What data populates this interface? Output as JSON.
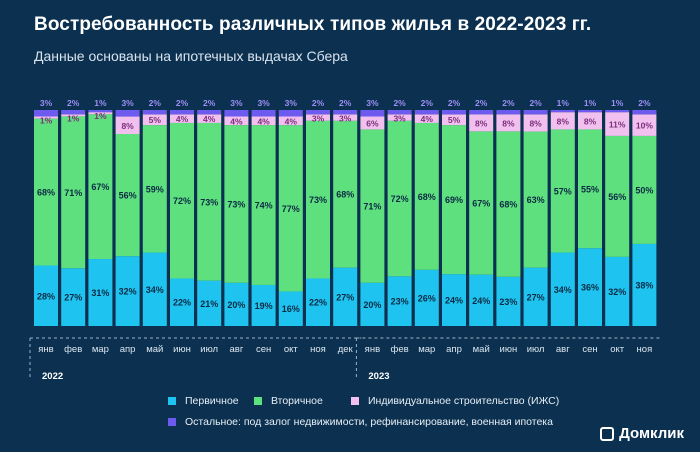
{
  "title": "Востребованность различных типов жилья в 2022-2023 гг.",
  "subtitle": "Данные основаны на ипотечных выдачах Сбера",
  "brand": "Домклик",
  "colors": {
    "background": "#0c3150",
    "primary": "#1ec3ef",
    "secondary": "#5ee07e",
    "izhs": "#f1c0ef",
    "other": "#6d5bf0"
  },
  "legend": [
    {
      "label": "Первичное",
      "color": "#1ec3ef"
    },
    {
      "label": "Вторичное",
      "color": "#5ee07e"
    },
    {
      "label": "Индивидуальное строительство (ИЖС)",
      "color": "#f1c0ef"
    },
    {
      "label": "Остальное: под залог недвижимости, рефинансирование, военная ипотека",
      "color": "#6d5bf0"
    }
  ],
  "chart_data": {
    "type": "bar",
    "stacked": true,
    "years": [
      {
        "label": "2022",
        "start": 0,
        "end": 11
      },
      {
        "label": "2023",
        "start": 12,
        "end": 22
      }
    ],
    "categories": [
      "янв",
      "фев",
      "мар",
      "апр",
      "май",
      "июн",
      "июл",
      "авг",
      "сен",
      "окт",
      "ноя",
      "дек",
      "янв",
      "фев",
      "мар",
      "апр",
      "май",
      "июн",
      "июл",
      "авг",
      "сен",
      "окт",
      "ноя"
    ],
    "series": [
      {
        "name": "Первичное",
        "values": [
          28,
          27,
          31,
          32,
          34,
          22,
          21,
          20,
          19,
          16,
          22,
          27,
          20,
          23,
          26,
          24,
          24,
          23,
          27,
          34,
          36,
          32,
          38
        ]
      },
      {
        "name": "Вторичное",
        "values": [
          68,
          71,
          67,
          56,
          59,
          72,
          73,
          73,
          74,
          77,
          73,
          68,
          71,
          72,
          68,
          69,
          67,
          68,
          63,
          57,
          55,
          56,
          50
        ]
      },
      {
        "name": "Индивидуальное строительство (ИЖС)",
        "values": [
          1,
          1,
          1,
          8,
          5,
          4,
          4,
          4,
          4,
          4,
          3,
          3,
          6,
          3,
          4,
          5,
          8,
          8,
          8,
          8,
          8,
          11,
          10
        ]
      },
      {
        "name": "Остальное: под залог недвижимости, рефинансирование, военная ипотека",
        "values": [
          3,
          2,
          1,
          3,
          2,
          2,
          2,
          3,
          3,
          3,
          2,
          2,
          3,
          2,
          2,
          2,
          2,
          2,
          2,
          1,
          1,
          1,
          2
        ]
      }
    ],
    "value_labels": [
      [
        "28%",
        "27%",
        "31%",
        "32%",
        "34%",
        "22%",
        "21%",
        "20%",
        "19%",
        "16%",
        "22%",
        "27%",
        "20%",
        "23%",
        "26%",
        "24%",
        "24%",
        "23%",
        "27%",
        "34%",
        "36%",
        "32%",
        "38%"
      ],
      [
        "68%",
        "71%",
        "67%",
        "56%",
        "59%",
        "72%",
        "73%",
        "73%",
        "74%",
        "77%",
        "73%",
        "68%",
        "71%",
        "72%",
        "68%",
        "69%",
        "67%",
        "68%",
        "63%",
        "57%",
        "55%",
        "56%",
        "50%"
      ],
      [
        "1%",
        "1%",
        "1%",
        "8%",
        "5%",
        "4%",
        "4%",
        "4%",
        "4%",
        "4%",
        "3%",
        "3%",
        "6%",
        "3%",
        "4%",
        "5%",
        "8%",
        "8%",
        "8%",
        "8%",
        "8%",
        "11%",
        "10%"
      ],
      [
        "3%",
        "2%",
        "1%",
        "3%",
        "2%",
        "2%",
        "2%",
        "3%",
        "3%",
        "3%",
        "2%",
        "2%",
        "3%",
        "2%",
        "2%",
        "2%",
        "2%",
        "2%",
        "2%",
        "1%",
        "1%",
        "1%",
        "2%"
      ]
    ],
    "ylim": [
      0,
      100
    ],
    "unit": "%",
    "grid": false,
    "legend_position": "bottom"
  }
}
